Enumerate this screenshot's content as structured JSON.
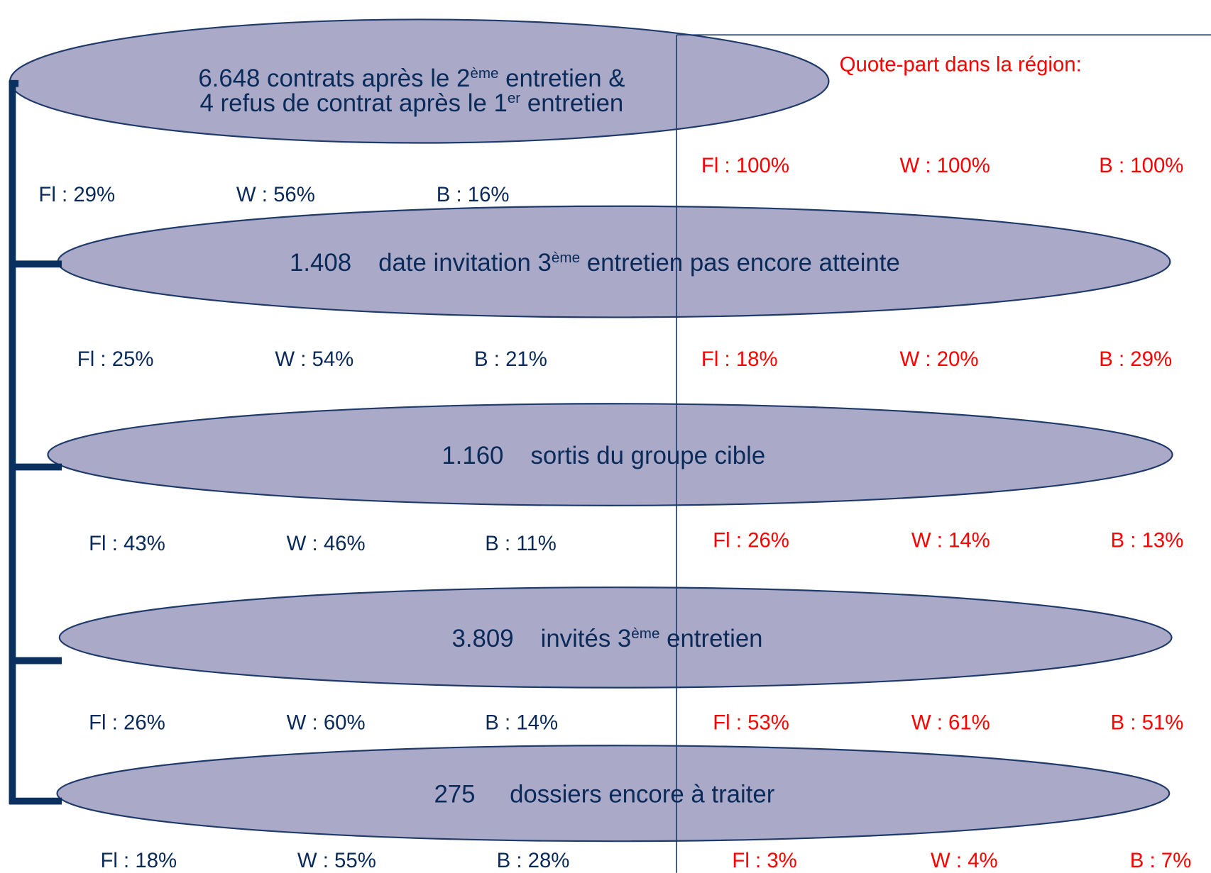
{
  "nodes": [
    {
      "lines": [
        [
          "6.648 contrats après le 2",
          "ème",
          " entretien &"
        ],
        [
          "4 refus de contrat après le 1",
          "er",
          " entretien"
        ]
      ]
    },
    {
      "count": "1.408",
      "label": [
        "date invitation 3",
        "ème",
        " entretien pas encore atteinte"
      ]
    },
    {
      "count": "1.160",
      "label": [
        "sortis du groupe cible"
      ]
    },
    {
      "count": "3.809",
      "label": [
        "invités 3",
        "ème",
        " entretien"
      ]
    },
    {
      "count": "275",
      "label": [
        "dossiers encore à traiter"
      ]
    }
  ],
  "shares": [
    [
      "Fl : 29%",
      "W : 56%",
      "B : 16%"
    ],
    [
      "Fl : 25%",
      "W : 54%",
      "B : 21%"
    ],
    [
      "Fl : 43%",
      "W : 46%",
      "B : 11%"
    ],
    [
      "Fl : 26%",
      "W : 60%",
      "B : 14%"
    ],
    [
      "Fl : 18%",
      "W : 55%",
      "B : 28%"
    ]
  ],
  "region": {
    "title": "Quote-part dans la région:",
    "rows": [
      [
        "Fl : 100%",
        "W : 100%",
        "B : 100%"
      ],
      [
        "Fl : 18%",
        "W : 20%",
        "B : 29%"
      ],
      [
        "Fl : 26%",
        "W : 14%",
        "B : 13%"
      ],
      [
        "Fl : 53%",
        "W : 61%",
        "B : 51%"
      ],
      [
        "Fl : 3%",
        "W : 4%",
        "B : 7%"
      ]
    ]
  }
}
